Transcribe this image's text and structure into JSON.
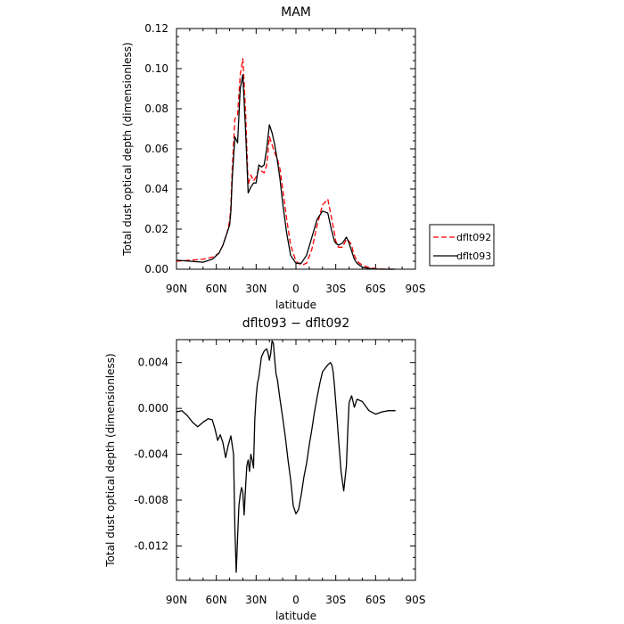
{
  "chart_data": [
    {
      "type": "line",
      "title": "MAM",
      "xlabel": "latitude",
      "ylabel": "Total dust optical depth (dimensionless)",
      "xlim": [
        90,
        -90
      ],
      "ylim": [
        0,
        0.12
      ],
      "xticks": [
        {
          "v": 90,
          "label": "90N"
        },
        {
          "v": 60,
          "label": "60N"
        },
        {
          "v": 30,
          "label": "30N"
        },
        {
          "v": 0,
          "label": "0"
        },
        {
          "v": -30,
          "label": "30S"
        },
        {
          "v": -60,
          "label": "60S"
        },
        {
          "v": -90,
          "label": "90S"
        }
      ],
      "yticks": [
        {
          "v": 0,
          "label": "0.00"
        },
        {
          "v": 0.02,
          "label": "0.02"
        },
        {
          "v": 0.04,
          "label": "0.04"
        },
        {
          "v": 0.06,
          "label": "0.06"
        },
        {
          "v": 0.08,
          "label": "0.08"
        },
        {
          "v": 0.1,
          "label": "0.10"
        },
        {
          "v": 0.12,
          "label": "0.12"
        }
      ],
      "legend_position": "right",
      "series": [
        {
          "name": "dflt092",
          "color": "#ff0000",
          "dash": "dashed",
          "x": [
            90,
            80,
            70,
            63,
            58,
            55,
            52,
            50,
            49,
            48,
            46,
            44,
            42,
            40,
            38,
            36,
            34,
            32,
            30,
            28,
            26,
            24,
            22,
            20,
            18,
            16,
            14,
            12,
            10,
            7,
            4,
            0,
            -4,
            -8,
            -12,
            -16,
            -20,
            -24,
            -27,
            -29,
            -30,
            -32,
            -35,
            -38,
            -40,
            -42,
            -43,
            -44,
            -46,
            -50,
            -55,
            -60,
            -65,
            -70,
            -75
          ],
          "y": [
            0.004,
            0.0045,
            0.005,
            0.006,
            0.008,
            0.012,
            0.018,
            0.024,
            0.032,
            0.05,
            0.075,
            0.077,
            0.097,
            0.105,
            0.08,
            0.042,
            0.047,
            0.044,
            0.046,
            0.05,
            0.049,
            0.048,
            0.052,
            0.066,
            0.062,
            0.058,
            0.055,
            0.05,
            0.04,
            0.025,
            0.012,
            0.004,
            0.002,
            0.003,
            0.01,
            0.022,
            0.032,
            0.035,
            0.025,
            0.018,
            0.014,
            0.011,
            0.011,
            0.015,
            0.014,
            0.012,
            0.009,
            0.007,
            0.004,
            0.002,
            0.0008,
            0.0003,
            0.0001,
            0.0,
            0.0
          ]
        },
        {
          "name": "dflt093",
          "color": "#000000",
          "dash": "solid",
          "x": [
            90,
            80,
            70,
            63,
            58,
            55,
            52,
            50,
            49,
            48,
            46,
            44,
            42,
            40,
            38,
            36,
            34,
            32,
            30,
            28,
            26,
            24,
            22,
            20,
            18,
            16,
            14,
            12,
            10,
            7,
            4,
            0,
            -4,
            -8,
            -12,
            -16,
            -20,
            -24,
            -27,
            -29,
            -30,
            -32,
            -35,
            -38,
            -40,
            -42,
            -43,
            -44,
            -46,
            -50,
            -55,
            -60,
            -65,
            -70,
            -75
          ],
          "y": [
            0.0045,
            0.004,
            0.0035,
            0.005,
            0.008,
            0.012,
            0.018,
            0.022,
            0.029,
            0.045,
            0.066,
            0.063,
            0.09,
            0.097,
            0.07,
            0.038,
            0.041,
            0.043,
            0.043,
            0.052,
            0.051,
            0.052,
            0.06,
            0.072,
            0.068,
            0.062,
            0.054,
            0.045,
            0.033,
            0.018,
            0.007,
            0.003,
            0.003,
            0.007,
            0.016,
            0.025,
            0.029,
            0.028,
            0.019,
            0.014,
            0.013,
            0.012,
            0.013,
            0.016,
            0.013,
            0.009,
            0.007,
            0.005,
            0.003,
            0.001,
            0.0004,
            0.0001,
            0.0,
            0.0,
            0.0
          ]
        }
      ]
    },
    {
      "type": "line",
      "title": "dflt093 − dflt092",
      "xlabel": "latitude",
      "ylabel": "Total dust optical depth (dimensionless)",
      "xlim": [
        90,
        -90
      ],
      "ylim": [
        -0.015,
        0.006
      ],
      "xticks": [
        {
          "v": 90,
          "label": "90N"
        },
        {
          "v": 60,
          "label": "60N"
        },
        {
          "v": 30,
          "label": "30N"
        },
        {
          "v": 0,
          "label": "0"
        },
        {
          "v": -30,
          "label": "30S"
        },
        {
          "v": -60,
          "label": "60S"
        },
        {
          "v": -90,
          "label": "90S"
        }
      ],
      "yticks": [
        {
          "v": 0.004,
          "label": "0.004"
        },
        {
          "v": 0.0,
          "label": "0.000"
        },
        {
          "v": -0.004,
          "label": "-0.004"
        },
        {
          "v": -0.008,
          "label": "-0.008"
        },
        {
          "v": -0.012,
          "label": "-0.012"
        }
      ],
      "series": [
        {
          "name": "",
          "color": "#000000",
          "dash": "solid",
          "x": [
            90,
            86,
            82,
            78,
            74,
            70,
            66,
            63,
            61,
            59,
            57,
            55,
            53,
            51,
            49,
            47,
            46,
            45,
            44,
            43,
            42,
            41,
            40,
            39,
            38,
            37,
            36,
            35,
            34,
            33,
            32,
            31,
            30,
            29,
            28,
            26,
            24,
            22,
            21,
            20,
            19,
            18,
            17,
            16,
            15,
            14,
            12,
            10,
            8,
            6,
            4,
            2,
            0,
            -2,
            -4,
            -6,
            -8,
            -10,
            -12,
            -14,
            -16,
            -18,
            -20,
            -22,
            -24,
            -26,
            -27,
            -28,
            -29,
            -30,
            -31,
            -32,
            -34,
            -36,
            -38,
            -39,
            -40,
            -41,
            -42,
            -43,
            -44,
            -46,
            -50,
            -55,
            -60,
            -65,
            -70,
            -75
          ],
          "y": [
            -0.0003,
            -0.0002,
            -0.0006,
            -0.0012,
            -0.0016,
            -0.0012,
            -0.0009,
            -0.001,
            -0.0018,
            -0.0028,
            -0.0023,
            -0.003,
            -0.0043,
            -0.0032,
            -0.0024,
            -0.004,
            -0.0105,
            -0.0143,
            -0.0113,
            -0.0085,
            -0.0075,
            -0.0069,
            -0.0073,
            -0.0093,
            -0.007,
            -0.005,
            -0.0045,
            -0.0055,
            -0.004,
            -0.0045,
            -0.0052,
            -0.001,
            0.001,
            0.0022,
            0.0027,
            0.0045,
            0.005,
            0.0052,
            0.0048,
            0.0042,
            0.0048,
            0.0059,
            0.0057,
            0.0042,
            0.003,
            0.0025,
            0.0008,
            -0.0008,
            -0.0025,
            -0.0045,
            -0.0062,
            -0.0085,
            -0.0092,
            -0.0088,
            -0.0075,
            -0.006,
            -0.0048,
            -0.0032,
            -0.0018,
            -0.0003,
            0.001,
            0.0022,
            0.0032,
            0.0035,
            0.0038,
            0.004,
            0.0038,
            0.0032,
            0.002,
            0.0005,
            -0.001,
            -0.0025,
            -0.0055,
            -0.0072,
            -0.005,
            -0.002,
            0.0005,
            0.0008,
            0.0011,
            0.0006,
            0.0001,
            0.0008,
            0.0006,
            -0.0002,
            -0.0005,
            -0.0003,
            -0.0002,
            -0.0002
          ]
        }
      ]
    }
  ],
  "legend": {
    "items": [
      {
        "label": "dflt092",
        "color": "#ff0000",
        "dash": "dashed"
      },
      {
        "label": "dflt093",
        "color": "#000000",
        "dash": "solid"
      }
    ]
  }
}
